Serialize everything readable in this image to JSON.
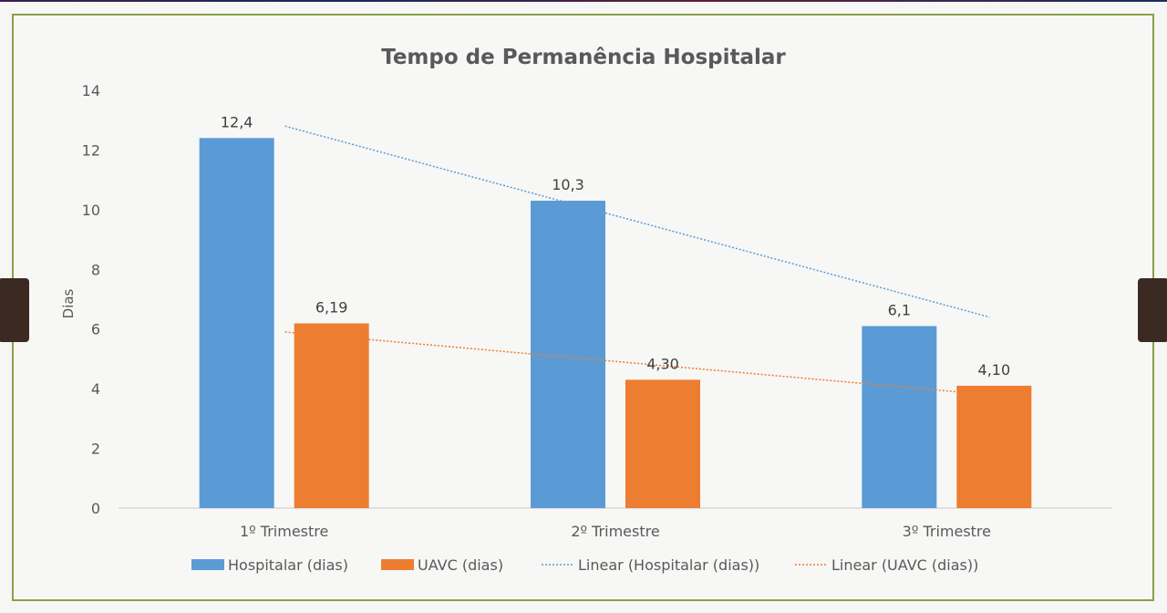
{
  "chart_data": {
    "type": "bar",
    "title": "Tempo de Permanência Hospitalar",
    "ylabel": "Dias",
    "xlabel": "",
    "ylim": [
      0,
      14
    ],
    "yticks": [
      0,
      2,
      4,
      6,
      8,
      10,
      12,
      14
    ],
    "grid": false,
    "legend_position": "bottom",
    "categories": [
      "1º Trimestre",
      "2º Trimestre",
      "3º Trimestre"
    ],
    "series": [
      {
        "name": "Hospitalar (dias)",
        "values": [
          12.4,
          10.3,
          6.1
        ],
        "labels": [
          "12,4",
          "10,3",
          "6,1"
        ],
        "color": "#5b9bd5"
      },
      {
        "name": "UAVC (dias)",
        "values": [
          6.19,
          4.3,
          4.1
        ],
        "labels": [
          "6,19",
          "4,30",
          "4,10"
        ],
        "color": "#ed7d31"
      }
    ],
    "trendlines": [
      {
        "name": "Linear (Hospitalar (dias))",
        "series": "Hospitalar (dias)",
        "color": "#5b9bd5",
        "start": 12.8,
        "end": 6.4
      },
      {
        "name": "Linear (UAVC (dias))",
        "series": "UAVC (dias)",
        "color": "#ed7d31",
        "start": 5.9,
        "end": 3.8
      }
    ]
  }
}
